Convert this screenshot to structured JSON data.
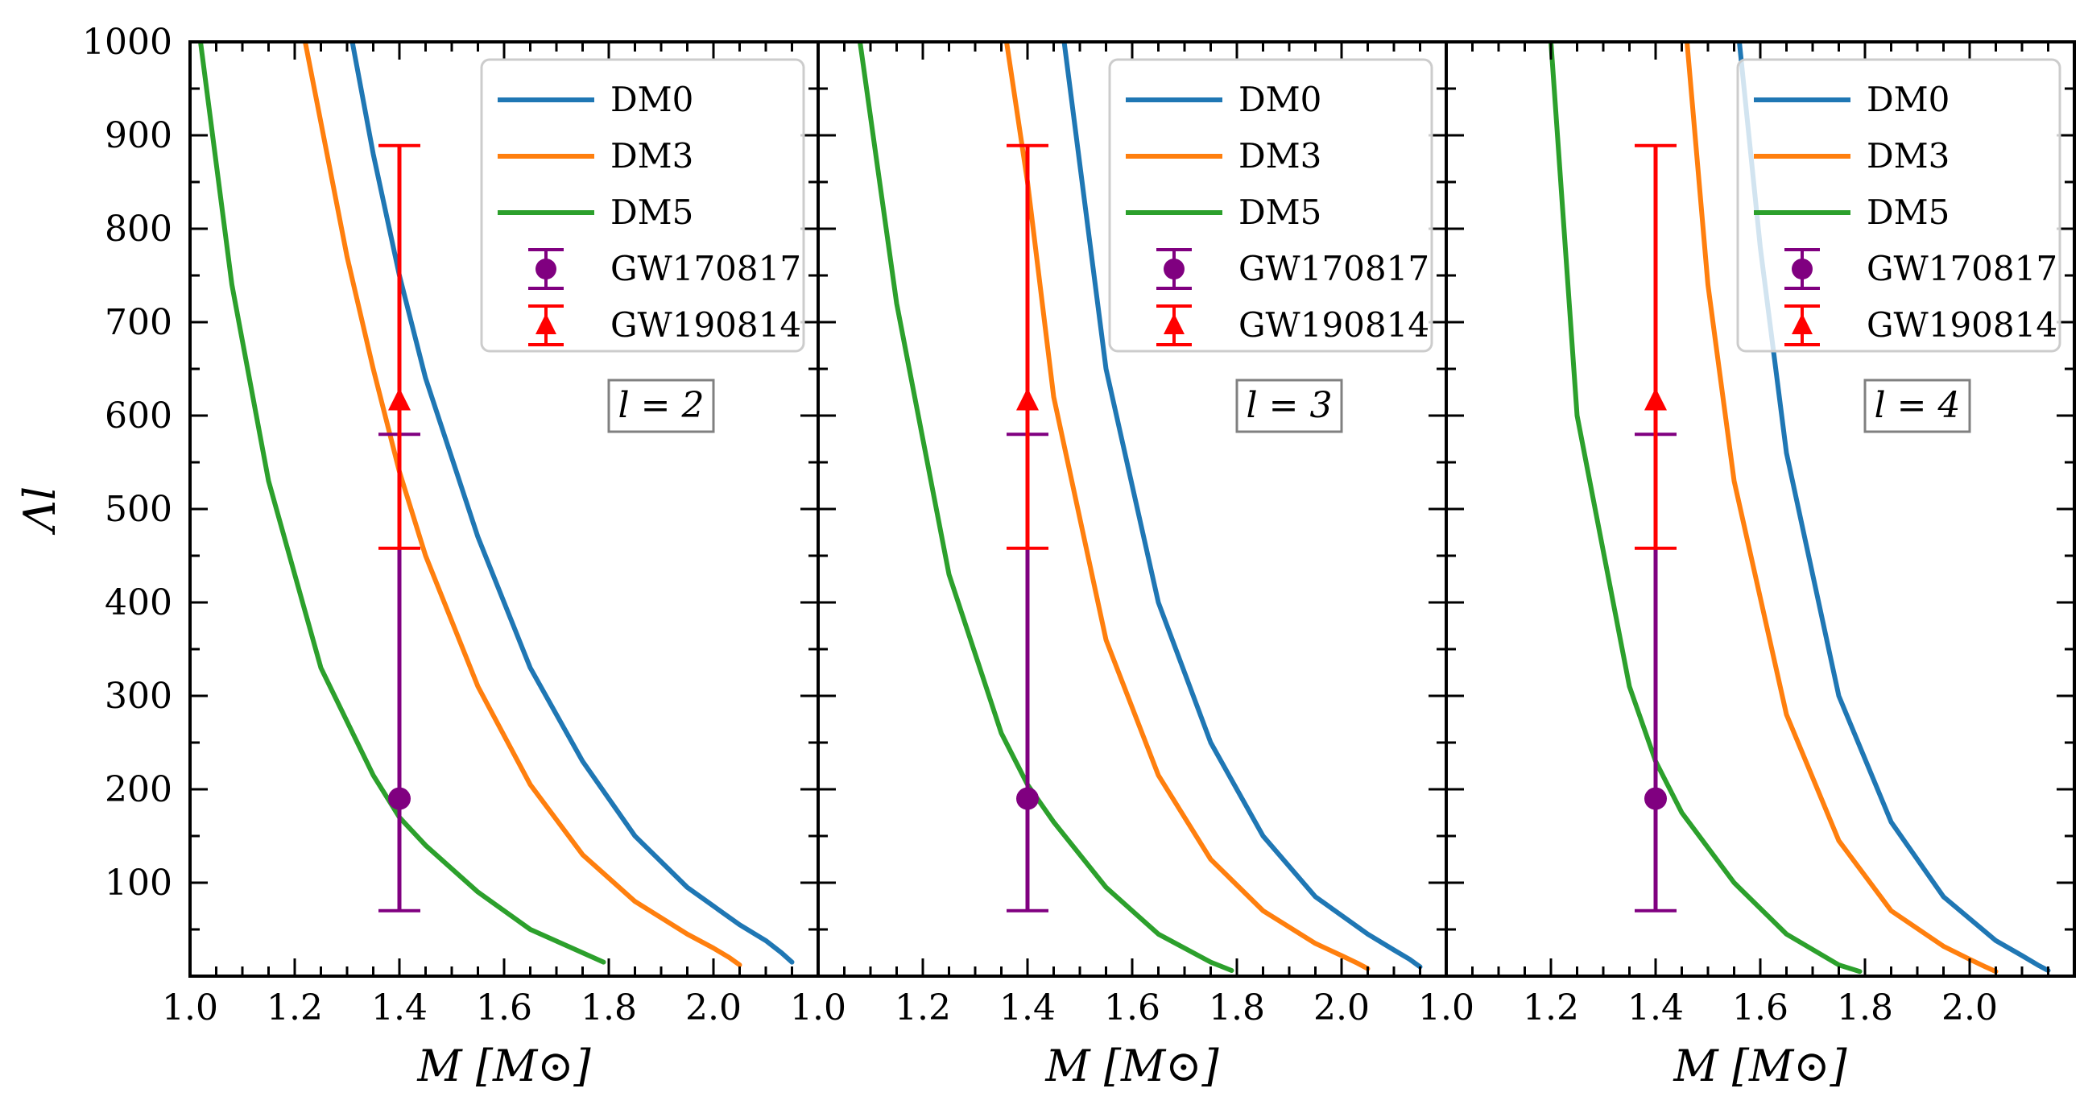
{
  "chart_data": {
    "type": "line",
    "x_axis": {
      "label": "M [M⊙]",
      "range": [
        1.0,
        2.2
      ],
      "ticks": [
        1.0,
        1.2,
        1.4,
        1.6,
        1.8,
        2.0
      ],
      "tick_labels": [
        "1.0",
        "1.2",
        "1.4",
        "1.6",
        "1.8",
        "2.0"
      ]
    },
    "y_axis": {
      "label": "Λl",
      "range": [
        0,
        1000
      ],
      "ticks": [
        100,
        200,
        300,
        400,
        500,
        600,
        700,
        800,
        900,
        1000
      ],
      "tick_labels": [
        "100",
        "200",
        "300",
        "400",
        "500",
        "600",
        "700",
        "800",
        "900",
        "1000"
      ]
    },
    "legend": {
      "placement": "top-right",
      "entries": [
        {
          "label": "DM0",
          "kind": "line",
          "color": "#1f77b4"
        },
        {
          "label": "DM3",
          "kind": "line",
          "color": "#ff7f0e"
        },
        {
          "label": "DM5",
          "kind": "line",
          "color": "#2ca02c"
        },
        {
          "label": "GW170817",
          "kind": "errorbar-circle",
          "color": "#800080"
        },
        {
          "label": "GW190814",
          "kind": "errorbar-triangle",
          "color": "#ff0000"
        }
      ]
    },
    "error_bars": [
      {
        "name": "GW170817",
        "x": 1.4,
        "y": 190,
        "y_low": 70,
        "y_high": 580,
        "marker": "circle",
        "color": "#800080"
      },
      {
        "name": "GW190814",
        "x": 1.4,
        "y": 616,
        "y_low": 458,
        "y_high": 889,
        "marker": "triangle",
        "color": "#ff0000"
      }
    ],
    "panels": [
      {
        "label": "l = 2",
        "series": [
          {
            "name": "DM0",
            "color": "#1f77b4",
            "x": [
              2.15,
              2.13,
              2.1,
              2.05,
              1.95,
              1.85,
              1.75,
              1.65,
              1.55,
              1.45,
              1.4,
              1.35,
              1.31
            ],
            "y": [
              15,
              25,
              38,
              55,
              95,
              150,
              230,
              330,
              470,
              640,
              750,
              880,
              1000
            ]
          },
          {
            "name": "DM3",
            "color": "#ff7f0e",
            "x": [
              2.05,
              2.03,
              2.0,
              1.95,
              1.85,
              1.75,
              1.65,
              1.55,
              1.45,
              1.4,
              1.35,
              1.3,
              1.22
            ],
            "y": [
              12,
              20,
              30,
              45,
              80,
              130,
              205,
              310,
              450,
              540,
              650,
              770,
              1000
            ]
          },
          {
            "name": "DM5",
            "color": "#2ca02c",
            "x": [
              1.79,
              1.75,
              1.65,
              1.55,
              1.45,
              1.4,
              1.35,
              1.25,
              1.15,
              1.08,
              1.02
            ],
            "y": [
              15,
              25,
              50,
              90,
              140,
              170,
              215,
              330,
              530,
              740,
              1000
            ]
          }
        ]
      },
      {
        "label": "l = 3",
        "series": [
          {
            "name": "DM0",
            "color": "#1f77b4",
            "x": [
              2.15,
              2.13,
              2.1,
              2.05,
              1.95,
              1.85,
              1.75,
              1.65,
              1.55,
              1.47
            ],
            "y": [
              10,
              18,
              28,
              45,
              85,
              150,
              250,
              400,
              650,
              1000
            ]
          },
          {
            "name": "DM3",
            "color": "#ff7f0e",
            "x": [
              2.05,
              2.03,
              2.0,
              1.95,
              1.85,
              1.75,
              1.65,
              1.55,
              1.45,
              1.4,
              1.36
            ],
            "y": [
              8,
              14,
              22,
              35,
              70,
              125,
              215,
              360,
              620,
              850,
              1000
            ]
          },
          {
            "name": "DM5",
            "color": "#2ca02c",
            "x": [
              1.79,
              1.75,
              1.65,
              1.55,
              1.45,
              1.4,
              1.35,
              1.25,
              1.15,
              1.08
            ],
            "y": [
              6,
              15,
              45,
              95,
              165,
              205,
              260,
              430,
              720,
              1000
            ]
          }
        ]
      },
      {
        "label": "l = 4",
        "series": [
          {
            "name": "DM0",
            "color": "#1f77b4",
            "x": [
              2.15,
              2.13,
              2.1,
              2.05,
              1.95,
              1.85,
              1.75,
              1.65,
              1.6,
              1.56
            ],
            "y": [
              6,
              12,
              22,
              38,
              85,
              165,
              300,
              560,
              780,
              1000
            ]
          },
          {
            "name": "DM3",
            "color": "#ff7f0e",
            "x": [
              2.05,
              2.03,
              2.0,
              1.95,
              1.85,
              1.75,
              1.65,
              1.55,
              1.5,
              1.46
            ],
            "y": [
              5,
              10,
              18,
              32,
              70,
              145,
              280,
              530,
              740,
              1000
            ]
          },
          {
            "name": "DM5",
            "color": "#2ca02c",
            "x": [
              1.79,
              1.75,
              1.65,
              1.55,
              1.45,
              1.4,
              1.35,
              1.25,
              1.2
            ],
            "y": [
              5,
              12,
              45,
              100,
              175,
              230,
              310,
              600,
              1000
            ]
          }
        ]
      }
    ]
  }
}
